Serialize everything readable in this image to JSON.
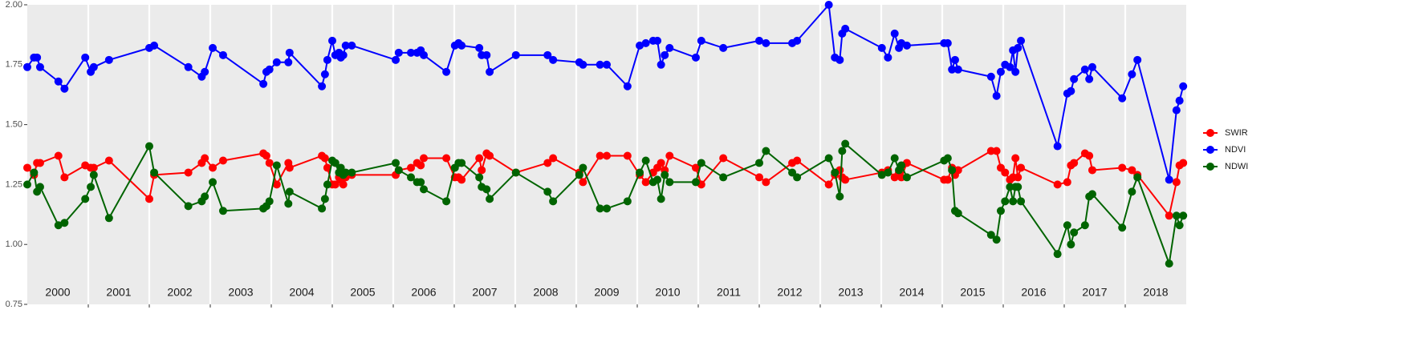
{
  "chart_data": {
    "type": "line",
    "xlim": [
      2000,
      2019
    ],
    "ylim": [
      0.75,
      2.0
    ],
    "yticks": [
      {
        "value": 0.75,
        "label": "0.75"
      },
      {
        "value": 1.0,
        "label": "1.00"
      },
      {
        "value": 1.25,
        "label": "1.25"
      },
      {
        "value": 1.5,
        "label": "1.50"
      },
      {
        "value": 1.75,
        "label": "1.75"
      },
      {
        "value": 2.0,
        "label": "2.00"
      }
    ],
    "xticks": [
      {
        "value": 2000.5,
        "label": "2000"
      },
      {
        "value": 2001.5,
        "label": "2001"
      },
      {
        "value": 2002.5,
        "label": "2002"
      },
      {
        "value": 2003.5,
        "label": "2003"
      },
      {
        "value": 2004.5,
        "label": "2004"
      },
      {
        "value": 2005.5,
        "label": "2005"
      },
      {
        "value": 2006.5,
        "label": "2006"
      },
      {
        "value": 2007.5,
        "label": "2007"
      },
      {
        "value": 2008.5,
        "label": "2008"
      },
      {
        "value": 2009.5,
        "label": "2009"
      },
      {
        "value": 2010.5,
        "label": "2010"
      },
      {
        "value": 2011.5,
        "label": "2011"
      },
      {
        "value": 2012.5,
        "label": "2012"
      },
      {
        "value": 2013.5,
        "label": "2013"
      },
      {
        "value": 2014.5,
        "label": "2014"
      },
      {
        "value": 2015.5,
        "label": "2015"
      },
      {
        "value": 2016.5,
        "label": "2016"
      },
      {
        "value": 2017.5,
        "label": "2017"
      },
      {
        "value": 2018.5,
        "label": "2018"
      }
    ],
    "xbreaks": [
      2001,
      2002,
      2003,
      2004,
      2005,
      2006,
      2007,
      2008,
      2009,
      2010,
      2011,
      2012,
      2013,
      2014,
      2015,
      2016,
      2017,
      2018
    ],
    "grid": true,
    "legend": "right",
    "x": [
      2000.0,
      2000.11,
      2000.16,
      2000.21,
      2000.51,
      2000.61,
      2000.95,
      2001.04,
      2001.09,
      2001.34,
      2002.0,
      2002.08,
      2002.64,
      2002.86,
      2002.91,
      2003.04,
      2003.21,
      2003.87,
      2003.92,
      2003.97,
      2004.09,
      2004.28,
      2004.3,
      2004.83,
      2004.88,
      2004.92,
      2005.0,
      2005.05,
      2005.11,
      2005.14,
      2005.18,
      2005.22,
      2005.32,
      2006.04,
      2006.09,
      2006.29,
      2006.39,
      2006.45,
      2006.5,
      2006.87,
      2007.01,
      2007.07,
      2007.12,
      2007.41,
      2007.45,
      2007.53,
      2007.58,
      2008.01,
      2008.53,
      2008.62,
      2009.05,
      2009.11,
      2009.39,
      2009.5,
      2009.84,
      2010.04,
      2010.14,
      2010.26,
      2010.33,
      2010.39,
      2010.45,
      2010.53,
      2010.96,
      2011.05,
      2011.41,
      2012.0,
      2012.11,
      2012.54,
      2012.62,
      2013.14,
      2013.24,
      2013.32,
      2013.36,
      2013.41,
      2014.01,
      2014.11,
      2014.22,
      2014.29,
      2014.33,
      2014.42,
      2015.03,
      2015.09,
      2015.16,
      2015.21,
      2015.26,
      2015.8,
      2015.89,
      2015.96,
      2016.03,
      2016.11,
      2016.16,
      2016.2,
      2016.24,
      2016.29,
      2016.89,
      2017.05,
      2017.11,
      2017.16,
      2017.34,
      2017.41,
      2017.46,
      2017.95,
      2018.11,
      2018.2,
      2018.72,
      2018.84,
      2018.89,
      2018.95
    ],
    "series": [
      {
        "name": "SWIR",
        "color": "#ff0000",
        "values": [
          1.32,
          1.29,
          1.34,
          1.34,
          1.37,
          1.28,
          1.33,
          1.32,
          1.32,
          1.35,
          1.19,
          1.29,
          1.3,
          1.34,
          1.36,
          1.32,
          1.35,
          1.38,
          1.37,
          1.34,
          1.25,
          1.34,
          1.32,
          1.37,
          1.36,
          1.32,
          1.25,
          1.25,
          1.28,
          1.27,
          1.25,
          1.28,
          1.29,
          1.29,
          1.31,
          1.32,
          1.34,
          1.33,
          1.36,
          1.36,
          1.28,
          1.28,
          1.27,
          1.36,
          1.31,
          1.38,
          1.37,
          1.3,
          1.34,
          1.36,
          1.3,
          1.26,
          1.37,
          1.37,
          1.37,
          1.29,
          1.26,
          1.3,
          1.32,
          1.34,
          1.31,
          1.37,
          1.32,
          1.25,
          1.36,
          1.28,
          1.26,
          1.34,
          1.35,
          1.25,
          1.29,
          1.31,
          1.28,
          1.27,
          1.3,
          1.31,
          1.28,
          1.3,
          1.28,
          1.34,
          1.27,
          1.27,
          1.32,
          1.29,
          1.31,
          1.39,
          1.39,
          1.32,
          1.3,
          1.27,
          1.28,
          1.36,
          1.28,
          1.32,
          1.25,
          1.26,
          1.33,
          1.34,
          1.38,
          1.37,
          1.31,
          1.32,
          1.31,
          1.29,
          1.12,
          1.26,
          1.33,
          1.34
        ]
      },
      {
        "name": "NDVI",
        "color": "#0000ff",
        "values": [
          1.74,
          1.78,
          1.78,
          1.74,
          1.68,
          1.65,
          1.78,
          1.72,
          1.74,
          1.77,
          1.82,
          1.83,
          1.74,
          1.7,
          1.72,
          1.82,
          1.79,
          1.67,
          1.72,
          1.73,
          1.76,
          1.76,
          1.8,
          1.66,
          1.71,
          1.77,
          1.85,
          1.79,
          1.8,
          1.78,
          1.79,
          1.83,
          1.83,
          1.77,
          1.8,
          1.8,
          1.8,
          1.81,
          1.79,
          1.72,
          1.83,
          1.84,
          1.83,
          1.82,
          1.79,
          1.79,
          1.72,
          1.79,
          1.79,
          1.77,
          1.76,
          1.75,
          1.75,
          1.75,
          1.66,
          1.83,
          1.84,
          1.85,
          1.85,
          1.75,
          1.79,
          1.82,
          1.78,
          1.85,
          1.82,
          1.85,
          1.84,
          1.84,
          1.85,
          2.0,
          1.78,
          1.77,
          1.88,
          1.9,
          1.82,
          1.78,
          1.88,
          1.82,
          1.84,
          1.83,
          1.84,
          1.84,
          1.73,
          1.77,
          1.73,
          1.7,
          1.62,
          1.72,
          1.75,
          1.74,
          1.81,
          1.72,
          1.82,
          1.85,
          1.41,
          1.63,
          1.64,
          1.69,
          1.73,
          1.69,
          1.74,
          1.61,
          1.71,
          1.77,
          1.27,
          1.56,
          1.6,
          1.66
        ]
      },
      {
        "name": "NDWI",
        "color": "#006400",
        "values": [
          1.25,
          1.3,
          1.22,
          1.24,
          1.08,
          1.09,
          1.19,
          1.24,
          1.29,
          1.11,
          1.41,
          1.3,
          1.16,
          1.18,
          1.2,
          1.26,
          1.14,
          1.15,
          1.16,
          1.18,
          1.33,
          1.17,
          1.22,
          1.15,
          1.19,
          1.25,
          1.35,
          1.34,
          1.3,
          1.32,
          1.29,
          1.3,
          1.3,
          1.34,
          1.31,
          1.28,
          1.26,
          1.26,
          1.23,
          1.18,
          1.32,
          1.34,
          1.34,
          1.28,
          1.24,
          1.23,
          1.19,
          1.3,
          1.22,
          1.18,
          1.29,
          1.32,
          1.15,
          1.15,
          1.18,
          1.3,
          1.35,
          1.26,
          1.27,
          1.19,
          1.29,
          1.26,
          1.26,
          1.34,
          1.28,
          1.34,
          1.39,
          1.3,
          1.28,
          1.36,
          1.3,
          1.2,
          1.39,
          1.42,
          1.29,
          1.3,
          1.36,
          1.31,
          1.33,
          1.28,
          1.35,
          1.36,
          1.31,
          1.14,
          1.13,
          1.04,
          1.02,
          1.14,
          1.18,
          1.24,
          1.18,
          1.24,
          1.24,
          1.18,
          0.96,
          1.08,
          1.0,
          1.05,
          1.08,
          1.2,
          1.21,
          1.07,
          1.22,
          1.28,
          0.92,
          1.12,
          1.08,
          1.12
        ]
      }
    ]
  }
}
